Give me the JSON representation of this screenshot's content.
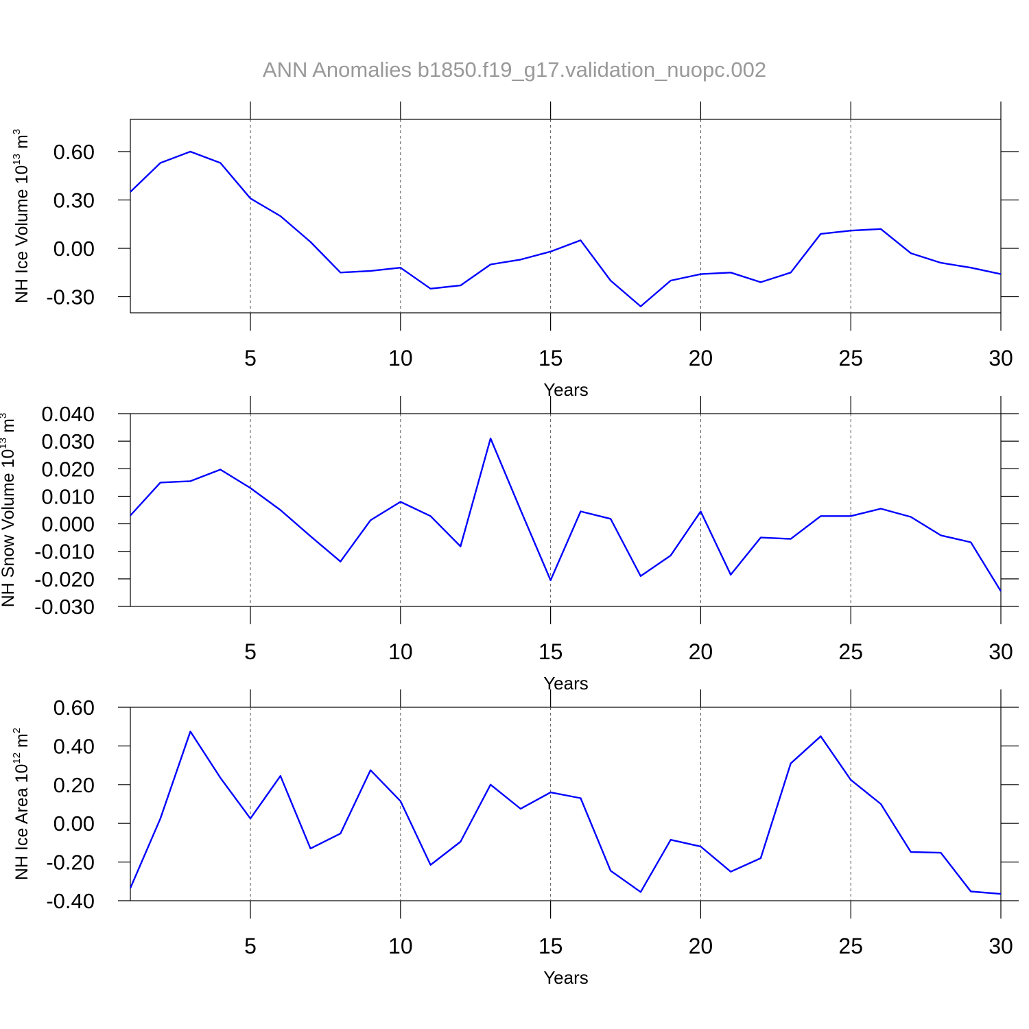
{
  "title": "ANN Anomalies b1850.f19_g17.validation_nuopc.002",
  "chart_data": [
    {
      "type": "line",
      "xlabel": "Years",
      "ylabel": [
        "NH Ice Volume 10",
        "13",
        " m",
        "3"
      ],
      "x": [
        1,
        2,
        3,
        4,
        5,
        6,
        7,
        8,
        9,
        10,
        11,
        12,
        13,
        14,
        15,
        16,
        17,
        18,
        19,
        20,
        21,
        22,
        23,
        24,
        25,
        26,
        27,
        28,
        29,
        30
      ],
      "values": [
        0.35,
        0.53,
        0.6,
        0.53,
        0.31,
        0.2,
        0.04,
        -0.15,
        -0.14,
        -0.12,
        -0.25,
        -0.23,
        -0.1,
        -0.07,
        -0.02,
        0.05,
        -0.2,
        -0.36,
        -0.2,
        -0.16,
        -0.15,
        -0.21,
        -0.15,
        0.09,
        0.11,
        0.12,
        -0.03,
        -0.09,
        -0.12,
        -0.16
      ],
      "color": "#0000ff",
      "xlim": [
        1,
        30
      ],
      "xticks": [
        5,
        10,
        15,
        20,
        25,
        30
      ],
      "ylim": [
        -0.4,
        0.8
      ],
      "yticks": [
        {
          "value": -0.3,
          "label": "-0.30"
        },
        {
          "value": 0,
          "label": "0.00"
        },
        {
          "value": 0.3,
          "label": "0.30"
        },
        {
          "value": 0.6,
          "label": "0.60"
        }
      ],
      "xgrid": true
    },
    {
      "type": "line",
      "xlabel": "Years",
      "ylabel": [
        "NH Snow Volume 10",
        "13",
        " m",
        "3"
      ],
      "x": [
        1,
        2,
        3,
        4,
        5,
        6,
        7,
        8,
        9,
        10,
        11,
        12,
        13,
        14,
        15,
        16,
        17,
        18,
        19,
        20,
        21,
        22,
        23,
        24,
        25,
        26,
        27,
        28,
        29,
        30
      ],
      "values": [
        0.003,
        0.015,
        0.0155,
        0.0197,
        0.013,
        0.005,
        -0.0045,
        -0.0137,
        0.0013,
        0.008,
        0.0028,
        -0.0082,
        0.031,
        0.005,
        -0.0205,
        0.0045,
        0.0018,
        -0.019,
        -0.0115,
        0.0045,
        -0.0185,
        -0.005,
        -0.0055,
        0.0028,
        0.0028,
        0.0055,
        0.0025,
        -0.0042,
        -0.0067,
        -0.0245
      ],
      "color": "#0000ff",
      "xlim": [
        1,
        30
      ],
      "xticks": [
        5,
        10,
        15,
        20,
        25,
        30
      ],
      "ylim": [
        -0.03,
        0.04
      ],
      "yticks": [
        {
          "value": -0.03,
          "label": "-0.030"
        },
        {
          "value": -0.02,
          "label": "-0.020"
        },
        {
          "value": -0.01,
          "label": "-0.010"
        },
        {
          "value": 0,
          "label": "0.000"
        },
        {
          "value": 0.01,
          "label": "0.010"
        },
        {
          "value": 0.02,
          "label": "0.020"
        },
        {
          "value": 0.03,
          "label": "0.030"
        },
        {
          "value": 0.04,
          "label": "0.040"
        }
      ],
      "xgrid": true
    },
    {
      "type": "line",
      "xlabel": "Years",
      "ylabel": [
        "NH Ice Area 10",
        "12",
        " m",
        "2"
      ],
      "x": [
        1,
        2,
        3,
        4,
        5,
        6,
        7,
        8,
        9,
        10,
        11,
        12,
        13,
        14,
        15,
        16,
        17,
        18,
        19,
        20,
        21,
        22,
        23,
        24,
        25,
        26,
        27,
        28,
        29,
        30
      ],
      "values": [
        -0.335,
        0.025,
        0.475,
        0.235,
        0.025,
        0.245,
        -0.13,
        -0.053,
        0.275,
        0.115,
        -0.215,
        -0.095,
        0.2,
        0.075,
        0.16,
        0.13,
        -0.245,
        -0.355,
        -0.085,
        -0.12,
        -0.25,
        -0.18,
        0.31,
        0.45,
        0.225,
        0.1,
        -0.148,
        -0.152,
        -0.352,
        -0.365
      ],
      "color": "#0000ff",
      "xlim": [
        1,
        30
      ],
      "xticks": [
        5,
        10,
        15,
        20,
        25,
        30
      ],
      "ylim": [
        -0.4,
        0.6
      ],
      "yticks": [
        {
          "value": -0.4,
          "label": "-0.40"
        },
        {
          "value": -0.2,
          "label": "-0.20"
        },
        {
          "value": 0,
          "label": "0.00"
        },
        {
          "value": 0.2,
          "label": "0.20"
        },
        {
          "value": 0.4,
          "label": "0.40"
        },
        {
          "value": 0.6,
          "label": "0.60"
        }
      ],
      "xgrid": true
    }
  ]
}
